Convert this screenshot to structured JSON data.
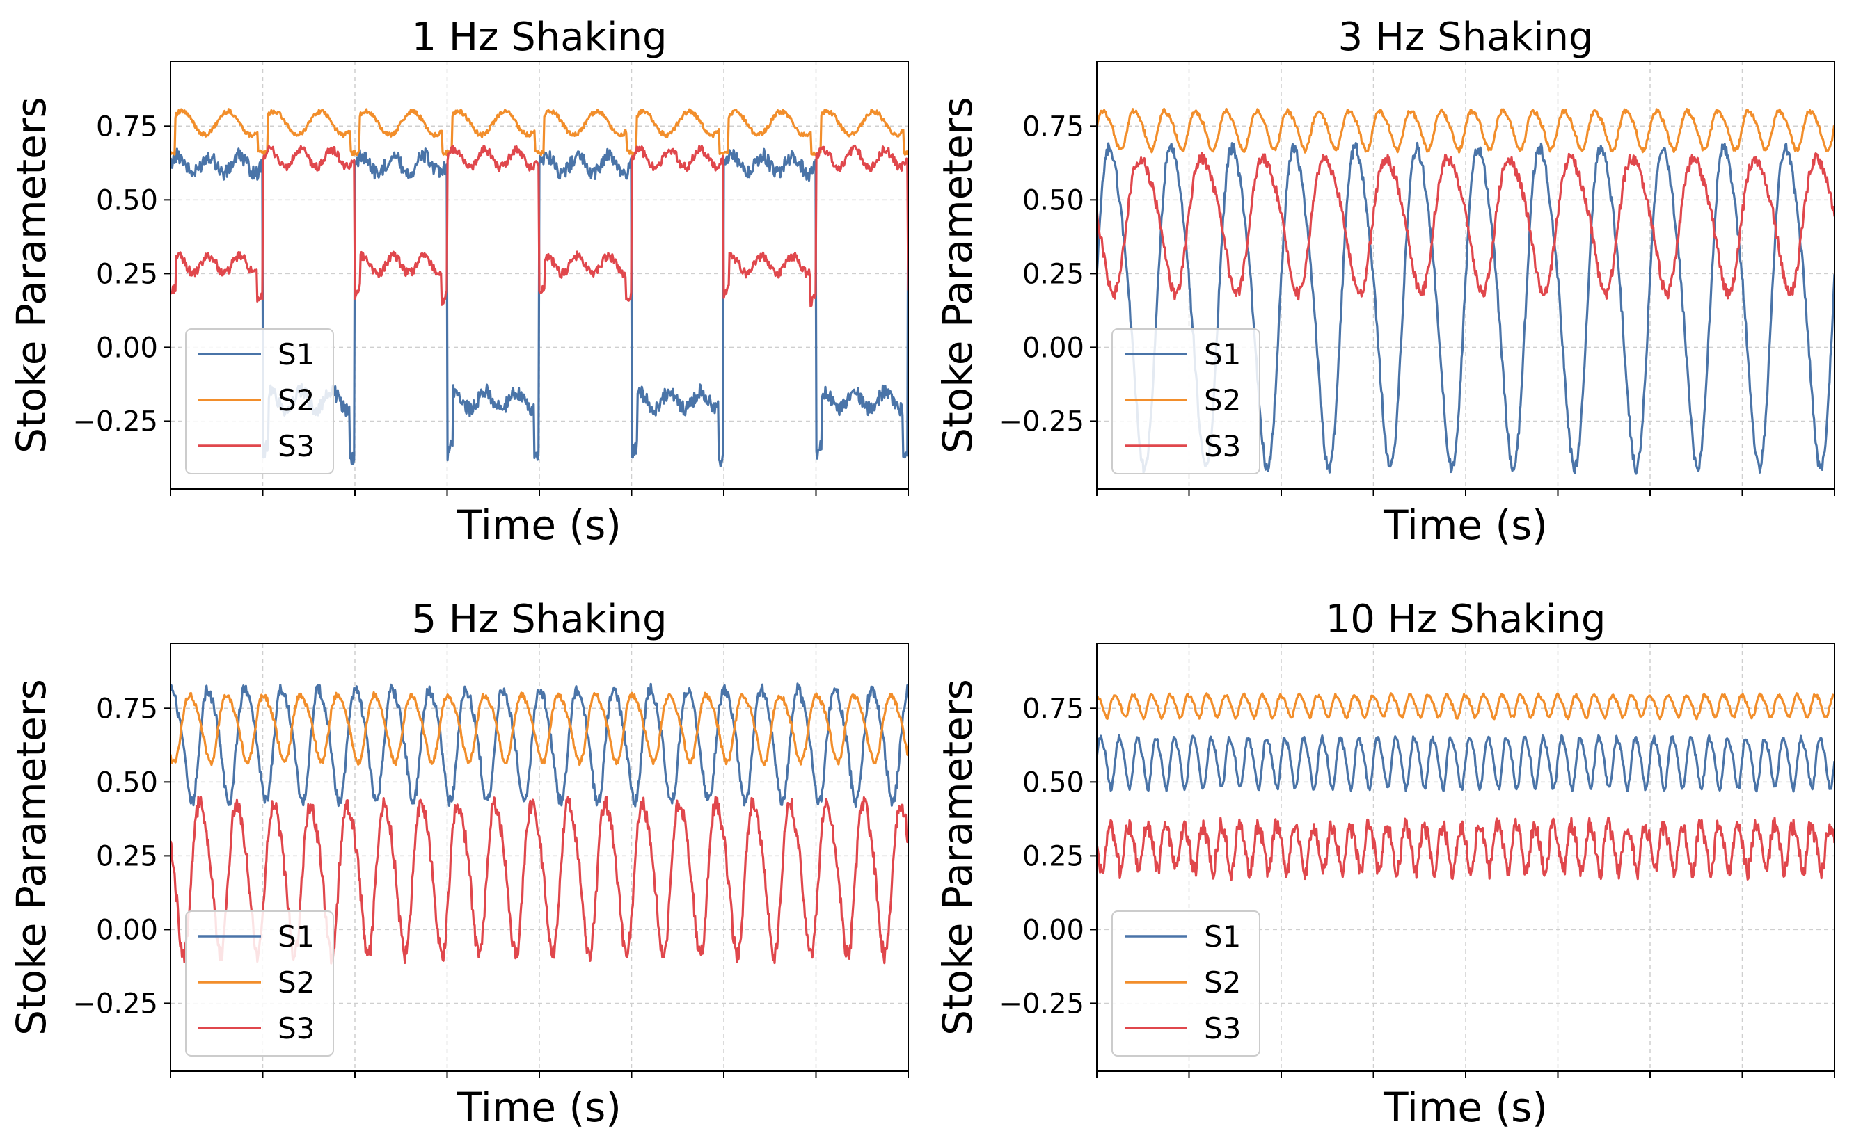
{
  "figure": {
    "colors": {
      "S1": "#4a74a8",
      "S2": "#f28e2b",
      "S3": "#e0474c"
    }
  },
  "chart_data": [
    {
      "type": "line",
      "title": "1 Hz Shaking",
      "xlabel": "Time (s)",
      "ylabel": "Stoke Parameters",
      "ylim": [
        -0.48,
        0.97
      ],
      "yticks": [
        -0.25,
        0.0,
        0.25,
        0.5,
        0.75
      ],
      "ytick_labels": [
        "−0.25",
        "0.00",
        "0.25",
        "0.50",
        "0.75"
      ],
      "grid": true,
      "legend": {
        "position": "bottom-left",
        "entries": [
          "S1",
          "S2",
          "S3"
        ]
      },
      "series": [
        {
          "name": "S1",
          "pattern": "square",
          "cycles": 4,
          "phase": 0.0,
          "high": 0.62,
          "low": -0.18,
          "dip": -0.36,
          "noise": 0.025
        },
        {
          "name": "S2",
          "pattern": "wave",
          "cycles": 4,
          "phase": 0.0,
          "center": 0.76,
          "amp": 0.04,
          "dip": 0.66,
          "noise": 0.008
        },
        {
          "name": "S3",
          "pattern": "square",
          "cycles": 4,
          "phase": 0.0,
          "high": 0.64,
          "low": 0.28,
          "dip": 0.18,
          "invert": true,
          "noise": 0.015
        }
      ]
    },
    {
      "type": "line",
      "title": "3 Hz Shaking",
      "xlabel": "Time (s)",
      "ylabel": "Stoke Parameters",
      "ylim": [
        -0.48,
        0.97
      ],
      "yticks": [
        -0.25,
        0.0,
        0.25,
        0.5,
        0.75
      ],
      "ytick_labels": [
        "−0.25",
        "0.00",
        "0.25",
        "0.50",
        "0.75"
      ],
      "grid": true,
      "legend": {
        "position": "bottom-left",
        "entries": [
          "S1",
          "S2",
          "S3"
        ]
      },
      "series": [
        {
          "name": "S1",
          "pattern": "sine",
          "cycles": 12,
          "phase": 0.0,
          "center": 0.18,
          "amp": 0.57,
          "noise": 0.02
        },
        {
          "name": "S2",
          "pattern": "sine",
          "cycles": 24,
          "phase": 0.0,
          "center": 0.74,
          "amp": 0.07,
          "noise": 0.008
        },
        {
          "name": "S3",
          "pattern": "sine",
          "cycles": 12,
          "phase": 3.14,
          "center": 0.43,
          "amp": 0.24,
          "noise": 0.02
        }
      ]
    },
    {
      "type": "line",
      "title": "5 Hz Shaking",
      "xlabel": "Time (s)",
      "ylabel": "Stoke Parameters",
      "ylim": [
        -0.48,
        0.97
      ],
      "yticks": [
        -0.25,
        0.0,
        0.25,
        0.5,
        0.75
      ],
      "ytick_labels": [
        "−0.25",
        "0.00",
        "0.25",
        "0.50",
        "0.75"
      ],
      "grid": true,
      "legend": {
        "position": "bottom-left",
        "entries": [
          "S1",
          "S2",
          "S3"
        ]
      },
      "series": [
        {
          "name": "S1",
          "pattern": "sine",
          "cycles": 20,
          "phase": 1.2,
          "center": 0.64,
          "amp": 0.2,
          "noise": 0.02
        },
        {
          "name": "S2",
          "pattern": "sine",
          "cycles": 20,
          "phase": 4.3,
          "center": 0.69,
          "amp": 0.12,
          "noise": 0.01
        },
        {
          "name": "S3",
          "pattern": "sine",
          "cycles": 20,
          "phase": 2.6,
          "center": 0.19,
          "amp": 0.27,
          "noise": 0.03
        }
      ]
    },
    {
      "type": "line",
      "title": "10 Hz Shaking",
      "xlabel": "Time (s)",
      "ylabel": "Stoke Parameters",
      "ylim": [
        -0.48,
        0.97
      ],
      "yticks": [
        -0.25,
        0.0,
        0.25,
        0.5,
        0.75
      ],
      "ytick_labels": [
        "−0.25",
        "0.00",
        "0.25",
        "0.50",
        "0.75"
      ],
      "grid": true,
      "legend": {
        "position": "bottom-left",
        "entries": [
          "S1",
          "S2",
          "S3"
        ]
      },
      "series": [
        {
          "name": "S1",
          "pattern": "sine",
          "cycles": 40,
          "phase": 0.0,
          "center": 0.57,
          "amp": 0.09,
          "noise": 0.01
        },
        {
          "name": "S2",
          "pattern": "sine",
          "cycles": 40,
          "phase": 1.5,
          "center": 0.76,
          "amp": 0.04,
          "noise": 0.006
        },
        {
          "name": "S3",
          "pattern": "sine",
          "cycles": 40,
          "phase": 3.0,
          "center": 0.28,
          "amp": 0.08,
          "noise": 0.03
        }
      ]
    }
  ]
}
